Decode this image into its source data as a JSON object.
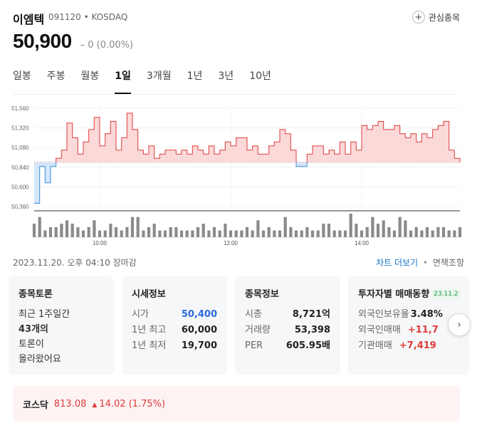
{
  "stock": {
    "name": "이엠텍",
    "code_market": "091120 • KOSDAQ",
    "price": "50,900",
    "change": "– 0 (0.00%)",
    "fav_label": "관심종목"
  },
  "tabs": [
    "일봉",
    "주봉",
    "월봉",
    "1일",
    "3개월",
    "1년",
    "3년",
    "10년"
  ],
  "active_tab": "1일",
  "chart_data": {
    "type": "area",
    "title": "",
    "xlabel": "",
    "ylabel": "",
    "ylim": [
      50360,
      51560
    ],
    "y_ticks": [
      "51,560",
      "51,320",
      "51,080",
      "50,840",
      "50,600",
      "50,360"
    ],
    "x_ticks": [
      "10:00",
      "12:00",
      "14:00"
    ],
    "baseline": 50900,
    "x": [
      "09:00",
      "09:05",
      "09:10",
      "09:15",
      "09:20",
      "09:25",
      "09:30",
      "09:35",
      "09:40",
      "09:45",
      "09:50",
      "09:55",
      "10:00",
      "10:05",
      "10:10",
      "10:15",
      "10:20",
      "10:25",
      "10:30",
      "10:35",
      "10:40",
      "10:45",
      "10:50",
      "10:55",
      "11:00",
      "11:05",
      "11:10",
      "11:15",
      "11:20",
      "11:25",
      "11:30",
      "11:35",
      "11:40",
      "11:45",
      "11:50",
      "11:55",
      "12:00",
      "12:05",
      "12:10",
      "12:15",
      "12:20",
      "12:25",
      "12:30",
      "12:35",
      "12:40",
      "12:45",
      "12:50",
      "12:55",
      "13:00",
      "13:05",
      "13:10",
      "13:15",
      "13:20",
      "13:25",
      "13:30",
      "13:35",
      "13:40",
      "13:45",
      "13:50",
      "13:55",
      "14:00",
      "14:05",
      "14:10",
      "14:15",
      "14:20",
      "14:25",
      "14:30",
      "14:35",
      "14:40",
      "14:45",
      "14:50",
      "14:55",
      "15:00",
      "15:05",
      "15:10",
      "15:15",
      "15:20",
      "15:25",
      "15:30"
    ],
    "price": [
      50400,
      50850,
      50650,
      50850,
      50950,
      51050,
      51380,
      51200,
      51000,
      51150,
      51300,
      51450,
      51100,
      51250,
      51400,
      51050,
      51200,
      51500,
      51300,
      51050,
      51000,
      51100,
      50950,
      51000,
      51050,
      51050,
      51000,
      51050,
      51000,
      51100,
      51050,
      51000,
      51100,
      51000,
      51050,
      51150,
      51100,
      51200,
      51200,
      51050,
      51100,
      51000,
      51000,
      51100,
      51150,
      51300,
      51250,
      51050,
      50850,
      50850,
      51000,
      51100,
      51100,
      51000,
      51050,
      51000,
      51150,
      51000,
      51150,
      51050,
      51350,
      51300,
      51350,
      51400,
      51300,
      51300,
      51350,
      51250,
      51200,
      51250,
      51150,
      51250,
      51200,
      51300,
      51350,
      51400,
      51050,
      50950,
      50900
    ],
    "volume": [
      4,
      6,
      2,
      3,
      3,
      4,
      5,
      4,
      3,
      2,
      3,
      5,
      2,
      2,
      4,
      3,
      2,
      3,
      6,
      6,
      2,
      3,
      4,
      2,
      2,
      3,
      3,
      2,
      2,
      2,
      3,
      4,
      2,
      3,
      2,
      4,
      2,
      2,
      2,
      3,
      2,
      5,
      2,
      3,
      2,
      2,
      6,
      3,
      2,
      2,
      3,
      2,
      2,
      4,
      4,
      2,
      2,
      2,
      7,
      4,
      2,
      3,
      6,
      4,
      5,
      3,
      2,
      6,
      5,
      2,
      3,
      2,
      3,
      2,
      3,
      3,
      2,
      2,
      3
    ]
  },
  "status": {
    "datetime": "2023.11.20. 오후 04:10 장마감",
    "more_chart": "차트 더보기",
    "disclaimer": "면책조항"
  },
  "cards": {
    "discussion": {
      "title": "종목토론",
      "line1": "최근 1주일간",
      "count": "43개의",
      "line3": "토론이",
      "line4": "올라왔어요"
    },
    "quote": {
      "title": "시세정보",
      "rows": [
        {
          "k": "시가",
          "v": "50,400"
        },
        {
          "k": "1년 최고",
          "v": "60,000"
        },
        {
          "k": "1년 최저",
          "v": "19,700"
        }
      ]
    },
    "info": {
      "title": "종목정보",
      "rows": [
        {
          "k": "시총",
          "v": "8,721억"
        },
        {
          "k": "거래량",
          "v": "53,398"
        },
        {
          "k": "PER",
          "v": "605.95배"
        }
      ]
    },
    "investor": {
      "title": "투자자별 매매동향",
      "badge": "23.11.2",
      "rows": [
        {
          "k": "외국인보유율",
          "v": "3.48%"
        },
        {
          "k": "외국인매매",
          "v": "+11,7"
        },
        {
          "k": "기관매매",
          "v": "+7,419"
        }
      ]
    }
  },
  "index": {
    "name": "코스닥",
    "value": "813.08",
    "change": "14.02 (1.75%)"
  },
  "colors": {
    "up": "#e03a3a",
    "down": "#3a8ee0",
    "up_fill": "#fbd9d9",
    "down_fill": "#d4e6f7"
  }
}
